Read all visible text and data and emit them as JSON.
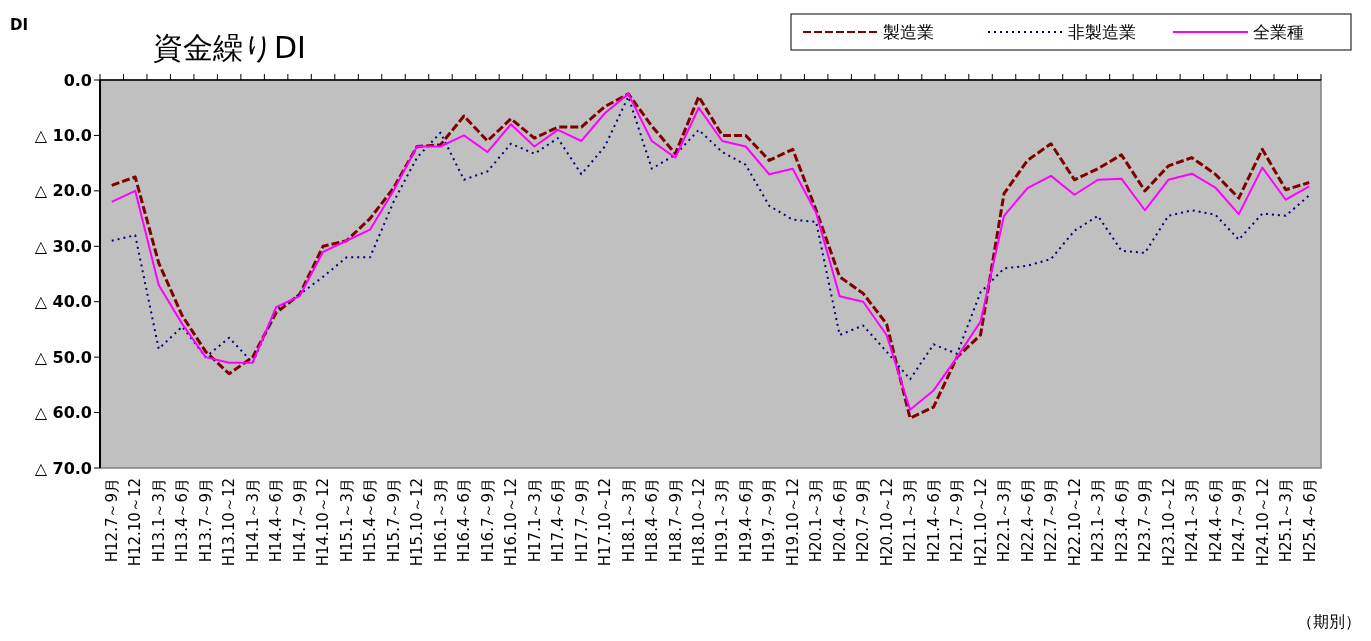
{
  "chart_data": {
    "type": "line",
    "title": "資金繰りDI",
    "ylabel": "DI",
    "xlabel": "（期別）",
    "categories": [
      "H12.7～9月",
      "H12.10～12",
      "H13.1～3月",
      "H13.4～6月",
      "H13.7～9月",
      "H13.10～12",
      "H14.1～3月",
      "H14.4～6月",
      "H14.7～9月",
      "H14.10～12",
      "H15.1～3月",
      "H15.4～6月",
      "H15.7～9月",
      "H15.10～12",
      "H16.1～3月",
      "H16.4～6月",
      "H16.7～9月",
      "H16.10～12",
      "H17.1～3月",
      "H17.4～6月",
      "H17.7～9月",
      "H17.10～12",
      "H18.1～3月",
      "H18.4～6月",
      "H18.7～9月",
      "H18.10～12",
      "H19.1～3月",
      "H19.4～6月",
      "H19.7～9月",
      "H19.10～12",
      "H20.1～3月",
      "H20.4～6月",
      "H20.7～9月",
      "H20.10～12",
      "H21.1～3月",
      "H21.4～6月",
      "H21.7～9月",
      "H21.10～12",
      "H22.1～3月",
      "H22.4～6月",
      "H22.7～9月",
      "H22.10～12",
      "H23.1～3月",
      "H23.4～6月",
      "H23.7～9月",
      "H23.10～12",
      "H24.1～3月",
      "H24.4～6月",
      "H24.7～9月",
      "H24.10～12",
      "H25.1～3月",
      "H25.4～6月"
    ],
    "series": [
      {
        "name": "製造業",
        "color": "#800000",
        "line_style": "dashed",
        "values": [
          -19,
          -17.5,
          -33,
          -42.5,
          -49,
          -53,
          -50,
          -42,
          -38.7,
          -30,
          -29,
          -25,
          -19.5,
          -12,
          -11.7,
          -6.5,
          -11,
          -7,
          -10.5,
          -8.5,
          -8.5,
          -4.8,
          -2.5,
          -8.3,
          -13.3,
          -3,
          -10,
          -10,
          -14.5,
          -12.5,
          -23.5,
          -35.5,
          -38.5,
          -44,
          -61,
          -59,
          -50,
          -46,
          -20.5,
          -14.5,
          -11.5,
          -18,
          -16,
          -13.5,
          -20,
          -15.5,
          -14,
          -17,
          -21.3,
          -12.5,
          -19.8,
          -18.5
        ]
      },
      {
        "name": "非製造業",
        "color": "#000080",
        "line_style": "dotted",
        "values": [
          -29,
          -28,
          -48.5,
          -44.5,
          -50,
          -46.5,
          -51,
          -41.5,
          -38.7,
          -35.5,
          -32,
          -32,
          -22,
          -14,
          -9.5,
          -18,
          -16.5,
          -11.5,
          -13.3,
          -10.5,
          -17,
          -12,
          -3,
          -16,
          -13.5,
          -9,
          -13,
          -15.3,
          -22.7,
          -25.2,
          -25.6,
          -46,
          -44.3,
          -49,
          -54,
          -47.7,
          -49.4,
          -38.3,
          -34,
          -33.5,
          -32.3,
          -27.2,
          -24.5,
          -30.8,
          -31.2,
          -24.5,
          -23.5,
          -24.3,
          -28.8,
          -24.1,
          -24.5,
          -20.8
        ]
      },
      {
        "name": "全業種",
        "color": "#ff00ff",
        "line_style": "solid",
        "values": [
          -22,
          -20,
          -37,
          -44,
          -50,
          -51,
          -51,
          -41,
          -39,
          -31,
          -29,
          -27,
          -20,
          -12,
          -12,
          -10,
          -13,
          -8,
          -12,
          -9,
          -11,
          -6,
          -2.5,
          -11,
          -14,
          -5,
          -11,
          -12,
          -17,
          -16,
          -24,
          -39,
          -40,
          -46,
          -59.5,
          -56,
          -50,
          -43.6,
          -24.5,
          -19.5,
          -17.3,
          -20.7,
          -18,
          -17.8,
          -23.5,
          -18,
          -16.9,
          -19.4,
          -24.2,
          -15.8,
          -21.6,
          -19.2
        ]
      }
    ],
    "ylim": [
      -70,
      0
    ],
    "yticks": [
      {
        "value": 0,
        "label": "0.0"
      },
      {
        "value": -10,
        "label": "△ 10.0"
      },
      {
        "value": -20,
        "label": "△ 20.0"
      },
      {
        "value": -30,
        "label": "△ 30.0"
      },
      {
        "value": -40,
        "label": "△ 40.0"
      },
      {
        "value": -50,
        "label": "△ 50.0"
      },
      {
        "value": -60,
        "label": "△ 60.0"
      },
      {
        "value": -70,
        "label": "△ 70.0"
      }
    ],
    "grid": false,
    "legend": "top right"
  }
}
